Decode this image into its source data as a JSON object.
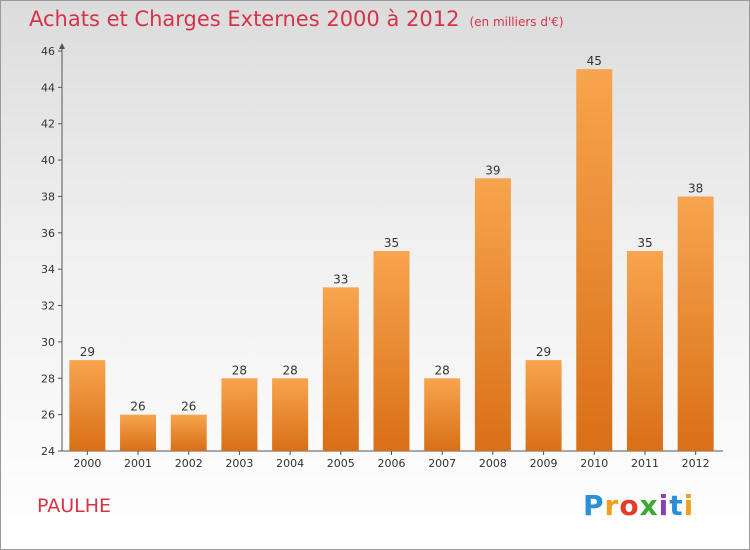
{
  "chart_data": {
    "type": "bar",
    "title": "Achats et Charges Externes 2000 à 2012",
    "unit_label": "(en milliers d'€)",
    "categories": [
      "2000",
      "2001",
      "2002",
      "2003",
      "2004",
      "2005",
      "2006",
      "2007",
      "2008",
      "2009",
      "2010",
      "2011",
      "2012"
    ],
    "values": [
      29,
      26,
      26,
      28,
      28,
      33,
      35,
      28,
      39,
      29,
      45,
      35,
      38
    ],
    "ylim": [
      24,
      46
    ],
    "yticks": [
      24,
      26,
      28,
      30,
      32,
      34,
      36,
      38,
      40,
      42,
      44,
      46
    ],
    "grid": false,
    "bar_color_top": "#f7a54e",
    "bar_color_bottom": "#d96f17"
  },
  "commune": "PAULHE",
  "logo": {
    "letters": [
      "P",
      "r",
      "o",
      "x",
      "i",
      "t",
      "i"
    ],
    "colors": [
      "#2a8fd6",
      "#f0a020",
      "#e43b2b",
      "#3aaa35",
      "#8a3fb8",
      "#2a8fd6",
      "#f0a020"
    ]
  },
  "colors": {
    "accent": "#d4344a",
    "axis": "#555555"
  }
}
